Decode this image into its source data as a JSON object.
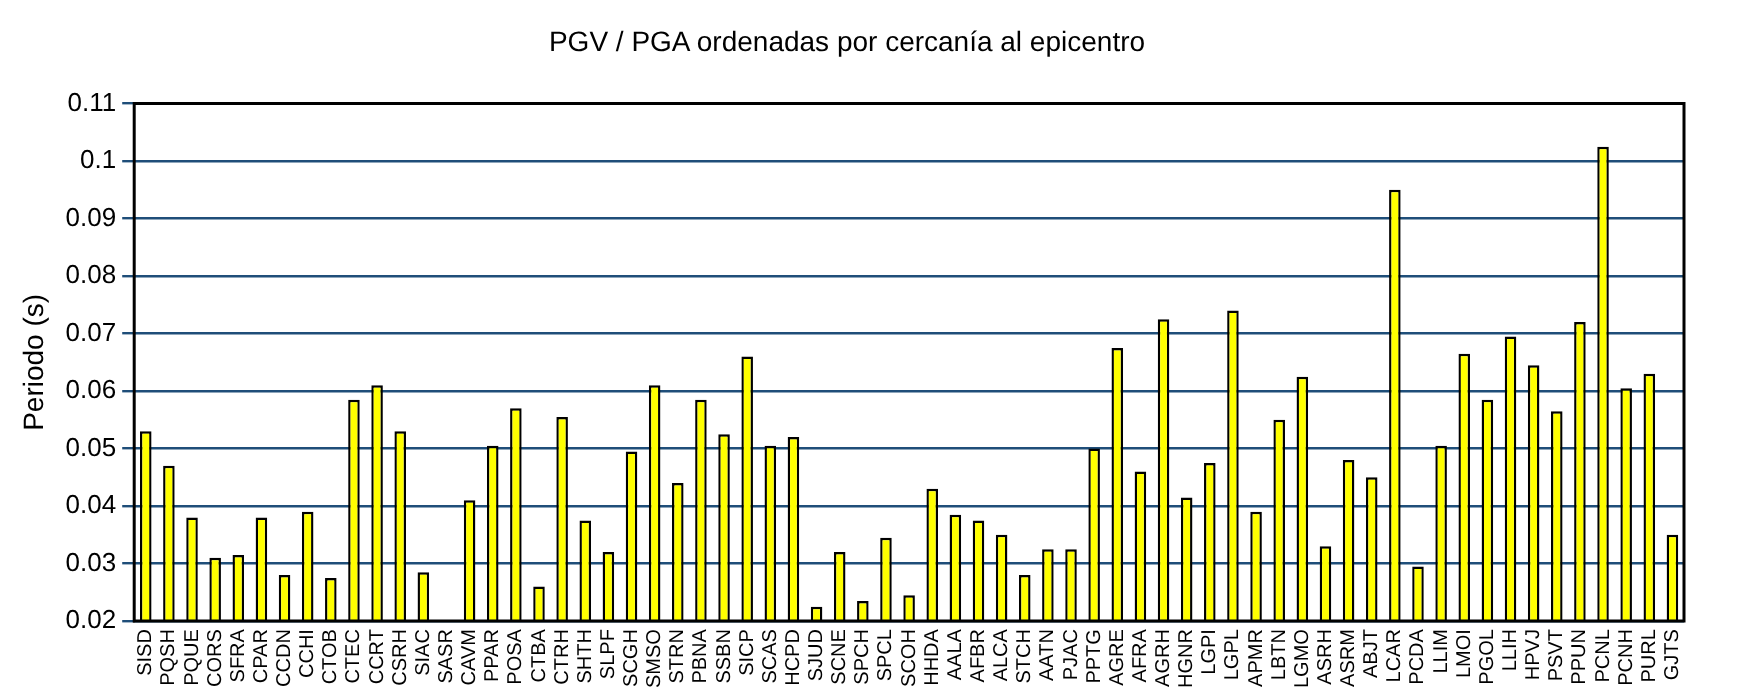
{
  "chart_data": {
    "type": "bar",
    "title": "PGV / PGA ordenadas por cercanía al epicentro",
    "ylabel": "Periodo (s)",
    "categories": [
      "SISD",
      "PQSH",
      "PQUE",
      "CORS",
      "SFRA",
      "CPAR",
      "CCDN",
      "CCHI",
      "CTOB",
      "CTEC",
      "CCRT",
      "CSRH",
      "SIAC",
      "SASR",
      "CAVM",
      "PPAR",
      "POSA",
      "CTBA",
      "CTRH",
      "SHTH",
      "SLPF",
      "SCGH",
      "SMSO",
      "STRN",
      "PBNA",
      "SSBN",
      "SICP",
      "SCAS",
      "HCPD",
      "SJUD",
      "SCNE",
      "SPCH",
      "SPCL",
      "SCOH",
      "HHDA",
      "AALA",
      "AFBR",
      "ALCA",
      "STCH",
      "AATN",
      "PJAC",
      "PPTG",
      "AGRE",
      "AFRA",
      "AGRH",
      "HGNR",
      "LGPI",
      "LGPL",
      "APMR",
      "LBTN",
      "LGMO",
      "ASRH",
      "ASRM",
      "ABJT",
      "LCAR",
      "PCDA",
      "LLIM",
      "LMOI",
      "PGOL",
      "LLIH",
      "HPVJ",
      "PSVT",
      "PPUN",
      "PCNL",
      "PCNH",
      "PURL",
      "GJTS"
    ],
    "values": [
      0.053,
      0.047,
      0.038,
      0.031,
      0.0315,
      0.038,
      0.028,
      0.039,
      0.0275,
      0.0585,
      0.061,
      0.053,
      0.0285,
      null,
      0.041,
      0.0505,
      0.057,
      0.026,
      0.0555,
      0.0375,
      0.032,
      0.0495,
      0.061,
      0.044,
      0.0585,
      0.0525,
      0.066,
      0.0505,
      0.052,
      0.0225,
      0.032,
      0.0235,
      0.0345,
      0.0245,
      0.043,
      0.0385,
      0.0375,
      0.035,
      0.028,
      0.0325,
      0.0325,
      0.05,
      0.0675,
      0.046,
      0.0725,
      0.0415,
      0.0475,
      0.074,
      0.039,
      0.055,
      0.0625,
      0.033,
      0.048,
      0.045,
      0.095,
      0.0295,
      0.0505,
      0.0665,
      0.0585,
      0.0695,
      0.0645,
      0.0565,
      0.072,
      0.1025,
      0.0605,
      0.063,
      0.035
    ],
    "color": "#ffff00",
    "ylim": [
      0.02,
      0.11
    ],
    "yticks": [
      0.02,
      0.03,
      0.04,
      0.05,
      0.06,
      0.07,
      0.08,
      0.09,
      0.1,
      0.11
    ],
    "grid": "y"
  }
}
